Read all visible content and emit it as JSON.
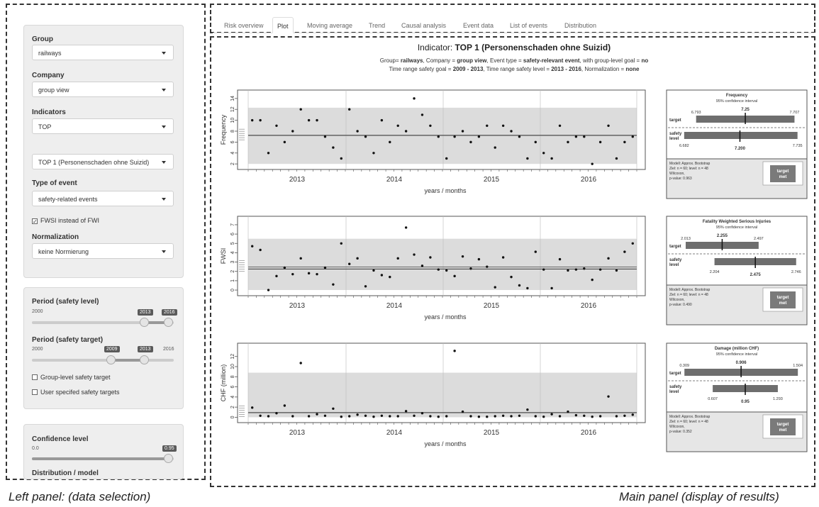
{
  "left_panel": {
    "group_label": "Group",
    "group_value": "railways",
    "company_label": "Company",
    "company_value": "group view",
    "indicators_label": "Indicators",
    "indicators_value": "TOP",
    "indicator_select": "TOP 1 (Personenschaden ohne Suizid)",
    "type_of_event_label": "Type of event",
    "type_of_event_value": "safety-related events",
    "fwsi_checkbox": "FWSI instead of FWI",
    "normalization_label": "Normalization",
    "normalization_value": "keine Normierung",
    "period_level_label": "Period (safety level)",
    "period_level_min": "2000",
    "period_level_from": "2013",
    "period_level_to": "2016",
    "period_target_label": "Period (safety target)",
    "period_target_min": "2000",
    "period_target_from": "2009",
    "period_target_to": "2013",
    "period_target_max": "2016",
    "group_target_checkbox": "Group-level safety target",
    "user_target_checkbox": "User specifed safety targets",
    "confidence_label": "Confidence level",
    "confidence_min": "0.0",
    "confidence_value": "0.95",
    "distribution_label": "Distribution / model"
  },
  "tabs": [
    "Risk overview",
    "Plot",
    "Moving average",
    "Trend",
    "Causal analysis",
    "Event data",
    "List of events",
    "Distribution"
  ],
  "active_tab": "Plot",
  "main": {
    "title_prefix": "Indicator:",
    "title_main": "TOP 1 (Personenschaden ohne Suizid)",
    "sub1": [
      {
        "t": "Group= ",
        "b": false
      },
      {
        "t": "railways",
        "b": true
      },
      {
        "t": ",   Company = ",
        "b": false
      },
      {
        "t": "group view",
        "b": true
      },
      {
        "t": ",   Event type = ",
        "b": false
      },
      {
        "t": "safety-relevant event",
        "b": true
      },
      {
        "t": ",   with group-level goal = ",
        "b": false
      },
      {
        "t": "no",
        "b": true
      }
    ],
    "sub2": [
      {
        "t": "Time range safety goal = ",
        "b": false
      },
      {
        "t": "2009 - 2013",
        "b": true
      },
      {
        "t": ",   Time range safety level = ",
        "b": false
      },
      {
        "t": "2013 - 2016",
        "b": true
      },
      {
        "t": ",   Normalization = ",
        "b": false
      },
      {
        "t": "none",
        "b": true
      }
    ]
  },
  "captions": {
    "left": "Left panel: (data selection)",
    "right": "Main panel (display of results)"
  },
  "colors": {
    "band": "#dcdcdc",
    "bar": "#6e6e6e",
    "verdict": "#7a7a7a"
  },
  "chart_data": [
    {
      "type": "scatter",
      "ylabel": "Frequency",
      "xlabel": "years / months",
      "x_ticks": [
        "2013",
        "2014",
        "2015",
        "2016"
      ],
      "ylim": [
        1.5,
        14.5
      ],
      "yticks": [
        2,
        4,
        6,
        8,
        10,
        12,
        14
      ],
      "band": [
        2,
        12.3
      ],
      "line_target": 7.25,
      "line_level": 7.2,
      "values": [
        10,
        10,
        4,
        9,
        6,
        8,
        12,
        10,
        10,
        7,
        5,
        3,
        12,
        8,
        7,
        4,
        10,
        6,
        9,
        8,
        14,
        11,
        9,
        7,
        3,
        7,
        8,
        6,
        7,
        9,
        5,
        9,
        8,
        7,
        3,
        6,
        4,
        3,
        9,
        6,
        7,
        7,
        2,
        6,
        9,
        3,
        6,
        7
      ]
    },
    {
      "type": "scatter",
      "ylabel": "FWSI",
      "xlabel": "years / months",
      "x_ticks": [
        "2013",
        "2014",
        "2015",
        "2016"
      ],
      "ylim": [
        -0.3,
        7.3
      ],
      "yticks": [
        0,
        1,
        2,
        3,
        4,
        5,
        6,
        7
      ],
      "band": [
        0,
        5.5
      ],
      "line_target": 2.255,
      "line_level": 2.475,
      "values": [
        4.7,
        4.3,
        0,
        1.5,
        2.4,
        1.7,
        3.4,
        1.8,
        1.7,
        2.4,
        0.6,
        5.0,
        2.8,
        3.4,
        0.4,
        2.1,
        1.6,
        1.4,
        3.4,
        6.7,
        3.8,
        2.6,
        3.5,
        2.2,
        2.1,
        1.5,
        3.6,
        2.3,
        3.3,
        2.5,
        0.3,
        3.5,
        1.4,
        0.5,
        0.2,
        4.1,
        2.2,
        0.2,
        3.3,
        2.1,
        2.2,
        2.3,
        1.1,
        2.2,
        3.4,
        2.1,
        4.1,
        5.0
      ]
    },
    {
      "type": "scatter",
      "ylabel": "CHF (million)",
      "xlabel": "years / months",
      "x_ticks": [
        "2013",
        "2014",
        "2015",
        "2016"
      ],
      "ylim": [
        -0.5,
        13.5
      ],
      "yticks": [
        0,
        2,
        4,
        6,
        8,
        10,
        12
      ],
      "band": [
        0,
        8.8
      ],
      "line_target": 0.906,
      "line_level": 0.95,
      "values": [
        1.9,
        0.3,
        0.2,
        0.8,
        2.3,
        0.2,
        10.7,
        0.2,
        0.6,
        0.3,
        1.7,
        0.1,
        0.2,
        0.5,
        0.3,
        0.1,
        0.3,
        0.2,
        0.2,
        1.2,
        0.3,
        0.8,
        0.2,
        0.1,
        0.2,
        13.1,
        1.1,
        0.2,
        0.1,
        0.1,
        0.2,
        0.3,
        0.2,
        0.3,
        1.5,
        0.2,
        0.1,
        0.6,
        0.2,
        1.1,
        0.4,
        0.3,
        0.1,
        0.2,
        4.1,
        0.2,
        0.3,
        0.5
      ]
    }
  ],
  "side_boxes": [
    {
      "title": "Frequency",
      "subtitle": "95% confidence interval",
      "target_label": "target",
      "level_label": "safety level",
      "target_low": "6.793",
      "target_mid": "7.25",
      "target_high": "7.707",
      "level_low": "6.682",
      "level_mid": "7.200",
      "level_high": "7.735",
      "range": [
        6.65,
        7.77
      ],
      "t": [
        6.793,
        7.25,
        7.707
      ],
      "l": [
        6.682,
        7.2,
        7.735
      ],
      "info": [
        "Modell: Approx. Bootstrap",
        "Ziel: n = 60; level: n = 48",
        "Wilcoxon,",
        "p-value: 0.963"
      ],
      "verdict": "target met"
    },
    {
      "title": "Fatality Weighted Serious Injuries",
      "subtitle": "95% confidence interval",
      "target_label": "target",
      "level_label": "safety level",
      "target_low": "2.013",
      "target_mid": "2.255",
      "target_high": "2.497",
      "level_low": "2.204",
      "level_mid": "2.475",
      "level_high": "2.746",
      "range": [
        1.98,
        2.78
      ],
      "t": [
        2.013,
        2.255,
        2.497
      ],
      "l": [
        2.204,
        2.475,
        2.746
      ],
      "info": [
        "Modell: Approx. Bootstrap",
        "Ziel: n = 60; level: n = 48",
        "Wilcoxon,",
        "p-value: 0.490"
      ],
      "verdict": "target met"
    },
    {
      "title": "Damage (million CHF)",
      "subtitle": "95% confidence interval",
      "target_label": "target",
      "level_label": "safety level",
      "target_low": "0.309",
      "target_mid": "0.906",
      "target_high": "1.504",
      "level_low": "0.607",
      "level_mid": "0.95",
      "level_high": "1.293",
      "range": [
        0.27,
        1.54
      ],
      "t": [
        0.309,
        0.906,
        1.504
      ],
      "l": [
        0.607,
        0.95,
        1.293
      ],
      "info": [
        "Modell: Approx. Bootstrap",
        "Ziel: n = 60; level: n = 48",
        "Wilcoxon,",
        "p-value: 0.352"
      ],
      "verdict": "target met"
    }
  ]
}
